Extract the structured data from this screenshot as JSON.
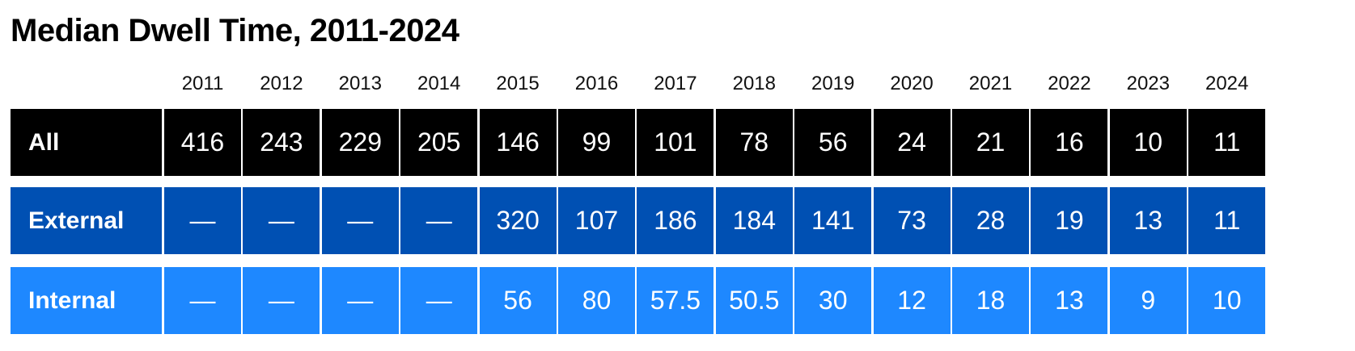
{
  "title": "Median Dwell Time, 2011-2024",
  "chart_data": {
    "type": "table",
    "title": "Median Dwell Time, 2011-2024",
    "columns": [
      "2011",
      "2012",
      "2013",
      "2014",
      "2015",
      "2016",
      "2017",
      "2018",
      "2019",
      "2020",
      "2021",
      "2022",
      "2023",
      "2024"
    ],
    "rows": [
      {
        "label": "All",
        "color": "#000000",
        "values": [
          "416",
          "243",
          "229",
          "205",
          "146",
          "99",
          "101",
          "78",
          "56",
          "24",
          "21",
          "16",
          "10",
          "11"
        ]
      },
      {
        "label": "External",
        "color": "#0050b3",
        "values": [
          "—",
          "—",
          "—",
          "—",
          "320",
          "107",
          "186",
          "184",
          "141",
          "73",
          "28",
          "19",
          "13",
          "11"
        ]
      },
      {
        "label": "Internal",
        "color": "#1e88ff",
        "values": [
          "—",
          "—",
          "—",
          "—",
          "56",
          "80",
          "57.5",
          "50.5",
          "30",
          "12",
          "18",
          "13",
          "9",
          "10"
        ]
      }
    ]
  }
}
